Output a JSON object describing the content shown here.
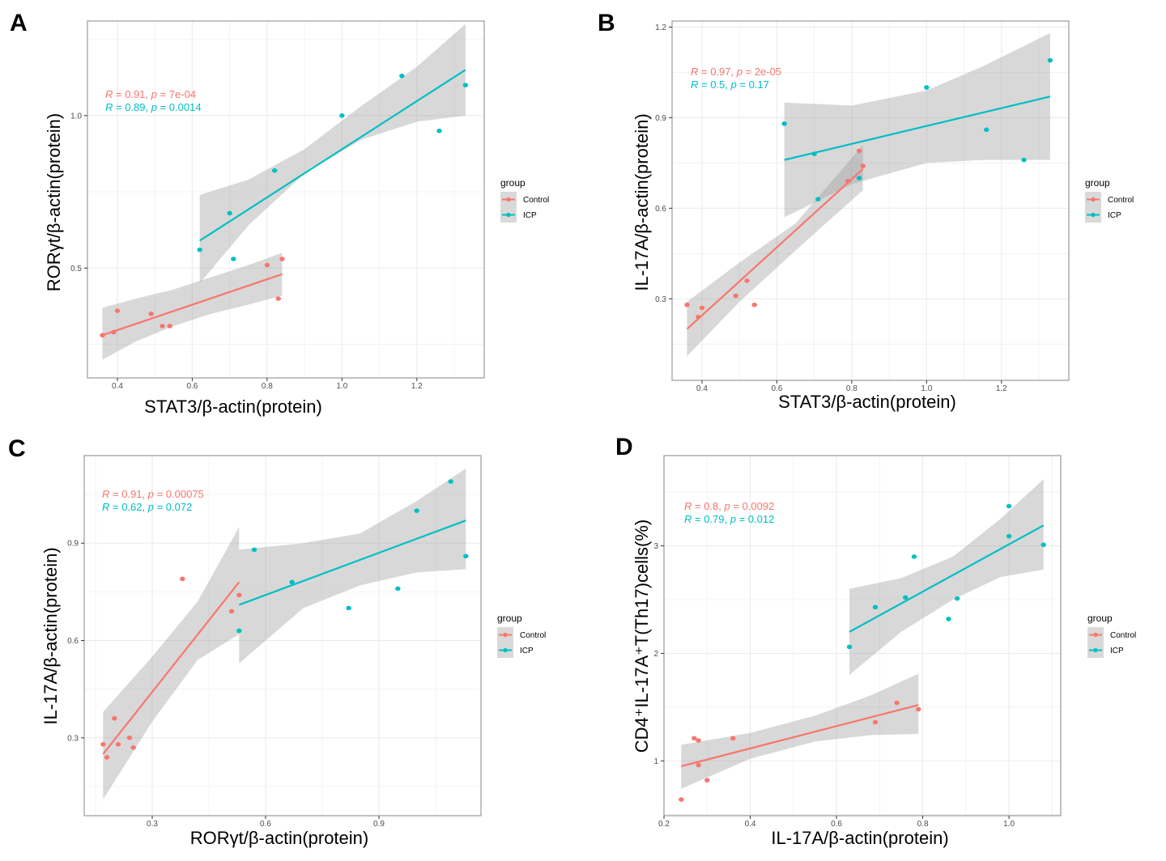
{
  "colors": {
    "control": "#F8766D",
    "icp": "#00BFC4",
    "ribbon": "#999999",
    "grid": "#ebebeb",
    "panel_border": "#999999",
    "tick_text": "#4d4d4d"
  },
  "legend": {
    "title": "group",
    "entries": [
      "Control",
      "ICP"
    ]
  },
  "chart_data": [
    {
      "type": "scatter",
      "panel": "A",
      "title": "",
      "xlabel": "STAT3/β-actin(protein)",
      "ylabel": "RORγt/β-actin(protein)",
      "xlim": [
        0.32,
        1.38
      ],
      "ylim": [
        0.14,
        1.31
      ],
      "xticks": [
        0.4,
        0.6,
        0.8,
        1.0,
        1.2
      ],
      "xtick_labels": [
        "0.4",
        "0.6",
        "0.8",
        "1.0",
        "1.2"
      ],
      "yticks": [
        0.5,
        1.0
      ],
      "ytick_labels": [
        "0.5",
        "1.0"
      ],
      "grid": true,
      "legend_position": "right",
      "annotations": [
        {
          "group": "Control",
          "r_label": "R",
          "text": " = 0.91, ",
          "p_label": "p",
          "p_text": " = 7e-04"
        },
        {
          "group": "ICP",
          "r_label": "R",
          "text": " = 0.89, ",
          "p_label": "p",
          "p_text": " = 0.0014"
        }
      ],
      "series": [
        {
          "name": "Control",
          "points": [
            [
              0.36,
              0.28
            ],
            [
              0.39,
              0.29
            ],
            [
              0.4,
              0.36
            ],
            [
              0.49,
              0.35
            ],
            [
              0.52,
              0.31
            ],
            [
              0.54,
              0.31
            ],
            [
              0.8,
              0.51
            ],
            [
              0.83,
              0.4
            ],
            [
              0.84,
              0.53
            ]
          ],
          "fit": {
            "x": [
              0.36,
              0.84
            ],
            "y": [
              0.28,
              0.48
            ]
          },
          "ci": {
            "x": [
              0.36,
              0.45,
              0.55,
              0.65,
              0.75,
              0.84
            ],
            "lower": [
              0.2,
              0.26,
              0.31,
              0.35,
              0.38,
              0.41
            ],
            "upper": [
              0.37,
              0.4,
              0.43,
              0.47,
              0.51,
              0.55
            ]
          }
        },
        {
          "name": "ICP",
          "points": [
            [
              0.62,
              0.56
            ],
            [
              0.7,
              0.68
            ],
            [
              0.71,
              0.53
            ],
            [
              0.82,
              0.82
            ],
            [
              1.0,
              1.0
            ],
            [
              1.16,
              1.13
            ],
            [
              1.26,
              0.95
            ],
            [
              1.33,
              1.1
            ]
          ],
          "fit": {
            "x": [
              0.62,
              1.33
            ],
            "y": [
              0.59,
              1.15
            ]
          },
          "ci": {
            "x": [
              0.62,
              0.75,
              0.9,
              1.05,
              1.2,
              1.33
            ],
            "lower": [
              0.45,
              0.64,
              0.81,
              0.92,
              0.98,
              1.0
            ],
            "upper": [
              0.74,
              0.79,
              0.89,
              1.03,
              1.16,
              1.3
            ]
          }
        }
      ]
    },
    {
      "type": "scatter",
      "panel": "B",
      "title": "",
      "xlabel": "STAT3/β-actin(protein)",
      "ylabel": "IL-17A/β-actin(protein)",
      "xlim": [
        0.32,
        1.38
      ],
      "ylim": [
        0.03,
        1.22
      ],
      "xticks": [
        0.4,
        0.6,
        0.8,
        1.0,
        1.2
      ],
      "xtick_labels": [
        "0.4",
        "0.6",
        "0.8",
        "1.0",
        "1.2"
      ],
      "yticks": [
        0.3,
        0.6,
        0.9,
        1.2
      ],
      "ytick_labels": [
        "0.3",
        "0.6",
        "0.9",
        "1.2"
      ],
      "grid": true,
      "legend_position": "right",
      "annotations": [
        {
          "group": "Control",
          "r_label": "R",
          "text": " = 0.97, ",
          "p_label": "p",
          "p_text": " = 2e-05"
        },
        {
          "group": "ICP",
          "r_label": "R",
          "text": " = 0.5, ",
          "p_label": "p",
          "p_text": " = 0.17"
        }
      ],
      "series": [
        {
          "name": "Control",
          "points": [
            [
              0.36,
              0.28
            ],
            [
              0.39,
              0.24
            ],
            [
              0.4,
              0.27
            ],
            [
              0.49,
              0.31
            ],
            [
              0.52,
              0.36
            ],
            [
              0.54,
              0.28
            ],
            [
              0.79,
              0.69
            ],
            [
              0.82,
              0.79
            ],
            [
              0.83,
              0.74
            ]
          ],
          "fit": {
            "x": [
              0.36,
              0.83
            ],
            "y": [
              0.2,
              0.73
            ]
          },
          "ci": {
            "x": [
              0.36,
              0.5,
              0.65,
              0.83
            ],
            "lower": [
              0.11,
              0.29,
              0.46,
              0.66
            ],
            "upper": [
              0.29,
              0.42,
              0.55,
              0.81
            ]
          }
        },
        {
          "name": "ICP",
          "points": [
            [
              0.62,
              0.88
            ],
            [
              0.7,
              0.78
            ],
            [
              0.71,
              0.63
            ],
            [
              0.82,
              0.7
            ],
            [
              1.0,
              1.0
            ],
            [
              1.16,
              0.86
            ],
            [
              1.26,
              0.76
            ],
            [
              1.33,
              1.09
            ]
          ],
          "fit": {
            "x": [
              0.62,
              1.33
            ],
            "y": [
              0.76,
              0.97
            ]
          },
          "ci": {
            "x": [
              0.62,
              0.8,
              1.0,
              1.15,
              1.33
            ],
            "lower": [
              0.57,
              0.68,
              0.75,
              0.76,
              0.76
            ],
            "upper": [
              0.95,
              0.94,
              0.99,
              1.07,
              1.18
            ]
          }
        }
      ]
    },
    {
      "type": "scatter",
      "panel": "C",
      "title": "",
      "xlabel": "RORγt/β-actin(protein)",
      "ylabel": "IL-17A/β-actin(protein)",
      "xlim": [
        0.12,
        1.17
      ],
      "ylim": [
        0.06,
        1.17
      ],
      "xticks": [
        0.3,
        0.6,
        0.9
      ],
      "xtick_labels": [
        "0.3",
        "0.6",
        "0.9"
      ],
      "yticks": [
        0.3,
        0.6,
        0.9
      ],
      "ytick_labels": [
        "0.3",
        "0.6",
        "0.9"
      ],
      "grid": true,
      "legend_position": "right",
      "annotations": [
        {
          "group": "Control",
          "r_label": "R",
          "text": " = 0.91, ",
          "p_label": "p",
          "p_text": " = 0.00075"
        },
        {
          "group": "ICP",
          "r_label": "R",
          "text": " = 0.62, ",
          "p_label": "p",
          "p_text": " = 0.072"
        }
      ],
      "series": [
        {
          "name": "Control",
          "points": [
            [
              0.17,
              0.28
            ],
            [
              0.18,
              0.24
            ],
            [
              0.2,
              0.36
            ],
            [
              0.21,
              0.28
            ],
            [
              0.24,
              0.3
            ],
            [
              0.25,
              0.27
            ],
            [
              0.38,
              0.79
            ],
            [
              0.51,
              0.69
            ],
            [
              0.53,
              0.74
            ]
          ],
          "fit": {
            "x": [
              0.17,
              0.53
            ],
            "y": [
              0.25,
              0.78
            ]
          },
          "ci": {
            "x": [
              0.17,
              0.3,
              0.42,
              0.53
            ],
            "lower": [
              0.11,
              0.35,
              0.54,
              0.62
            ],
            "upper": [
              0.38,
              0.55,
              0.72,
              0.95
            ]
          }
        },
        {
          "name": "ICP",
          "points": [
            [
              0.53,
              0.63
            ],
            [
              0.57,
              0.88
            ],
            [
              0.67,
              0.78
            ],
            [
              0.82,
              0.7
            ],
            [
              0.95,
              0.76
            ],
            [
              1.0,
              1.0
            ],
            [
              1.09,
              1.09
            ],
            [
              1.13,
              0.86
            ]
          ],
          "fit": {
            "x": [
              0.53,
              1.13
            ],
            "y": [
              0.71,
              0.97
            ]
          },
          "ci": {
            "x": [
              0.53,
              0.7,
              0.85,
              1.0,
              1.13
            ],
            "lower": [
              0.53,
              0.7,
              0.77,
              0.81,
              0.82
            ],
            "upper": [
              0.88,
              0.9,
              0.93,
              1.03,
              1.13
            ]
          }
        }
      ]
    },
    {
      "type": "scatter",
      "panel": "D",
      "title": "",
      "xlabel": "IL-17A/β-actin(protein)",
      "ylabel": "CD4⁺IL-17A⁺T(Th17)cells(%)",
      "xlim": [
        0.2,
        1.12
      ],
      "ylim": [
        0.49,
        3.84
      ],
      "xticks": [
        0.2,
        0.4,
        0.6,
        0.8,
        1.0
      ],
      "xtick_labels": [
        "0.2",
        "0.4",
        "0.6",
        "0.8",
        "1.0"
      ],
      "yticks": [
        1,
        2,
        3
      ],
      "ytick_labels": [
        "1",
        "2",
        "3"
      ],
      "grid": true,
      "legend_position": "right",
      "annotations": [
        {
          "group": "Control",
          "r_label": "R",
          "text": " = 0.8, ",
          "p_label": "p",
          "p_text": " = 0.0092"
        },
        {
          "group": "ICP",
          "r_label": "R",
          "text": " = 0.79, ",
          "p_label": "p",
          "p_text": " = 0.012"
        }
      ],
      "series": [
        {
          "name": "Control",
          "points": [
            [
              0.24,
              0.64
            ],
            [
              0.27,
              1.21
            ],
            [
              0.28,
              1.19
            ],
            [
              0.28,
              0.96
            ],
            [
              0.3,
              0.82
            ],
            [
              0.36,
              1.21
            ],
            [
              0.69,
              1.36
            ],
            [
              0.74,
              1.54
            ],
            [
              0.79,
              1.48
            ]
          ],
          "fit": {
            "x": [
              0.24,
              0.79
            ],
            "y": [
              0.95,
              1.52
            ]
          },
          "ci": {
            "x": [
              0.24,
              0.4,
              0.55,
              0.68,
              0.79
            ],
            "lower": [
              0.74,
              1.02,
              1.18,
              1.24,
              1.25
            ],
            "upper": [
              1.15,
              1.26,
              1.42,
              1.61,
              1.81
            ]
          }
        },
        {
          "name": "ICP",
          "points": [
            [
              0.63,
              2.06
            ],
            [
              0.69,
              2.43
            ],
            [
              0.76,
              2.52
            ],
            [
              0.78,
              2.9
            ],
            [
              0.86,
              2.32
            ],
            [
              0.88,
              2.51
            ],
            [
              1.0,
              3.09
            ],
            [
              1.0,
              3.37
            ],
            [
              1.08,
              3.01
            ]
          ],
          "fit": {
            "x": [
              0.63,
              1.08
            ],
            "y": [
              2.2,
              3.19
            ]
          },
          "ci": {
            "x": [
              0.63,
              0.75,
              0.87,
              0.98,
              1.08
            ],
            "lower": [
              1.8,
              2.2,
              2.5,
              2.71,
              2.78
            ],
            "upper": [
              2.6,
              2.7,
              2.9,
              3.25,
              3.62
            ]
          }
        }
      ]
    }
  ]
}
